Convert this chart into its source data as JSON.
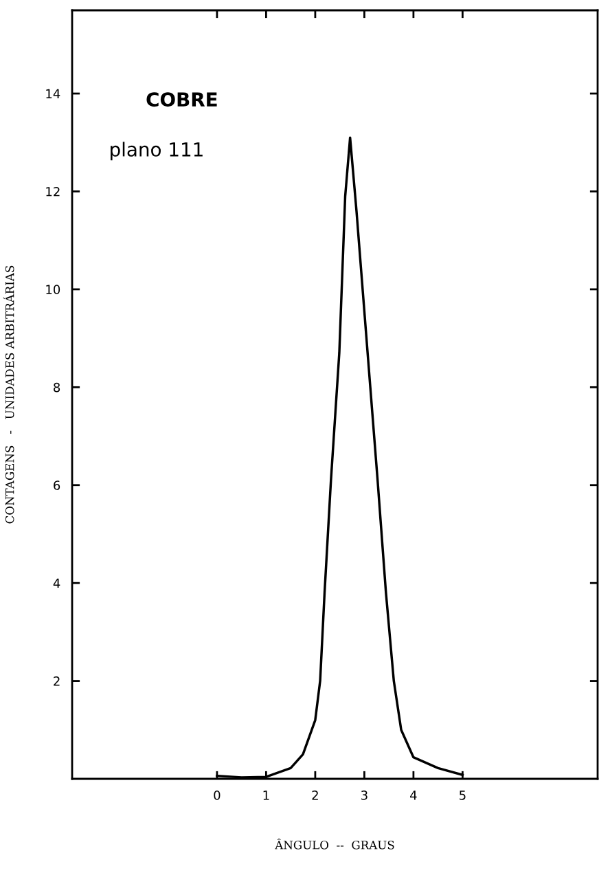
{
  "chart_data": {
    "type": "line",
    "xlabel": "ÂNGULO  --  GRAUS",
    "ylabel": "CONTAGENS   -   UNIDADES ARBITRÁRIAS",
    "annotations": [
      "COBRE",
      "plano 111"
    ],
    "series": [
      {
        "color": "#000000",
        "x": [
          0,
          0.5,
          1,
          1.5,
          1.75,
          2.0,
          2.1,
          2.19,
          2.32,
          2.49,
          2.61,
          2.71,
          2.84,
          3.09,
          3.27,
          3.44,
          3.6,
          3.75,
          4.0,
          4.5,
          5.0
        ],
        "values": [
          0.06,
          0.03,
          0.04,
          0.22,
          0.5,
          1.2,
          2.0,
          3.8,
          6.1,
          8.7,
          11.9,
          13.1,
          11.6,
          8.4,
          6.1,
          3.8,
          2.0,
          1.0,
          0.44,
          0.22,
          0.08
        ]
      }
    ],
    "xlim": [
      -2.95,
      7.75
    ],
    "ylim": [
      0,
      15.7
    ],
    "xticks": [
      0,
      1,
      2,
      3,
      4,
      5
    ],
    "yticks": [
      2,
      4,
      6,
      8,
      10,
      12,
      14
    ],
    "grid": false,
    "legend": false,
    "marker": "none",
    "line_style": "solid"
  }
}
